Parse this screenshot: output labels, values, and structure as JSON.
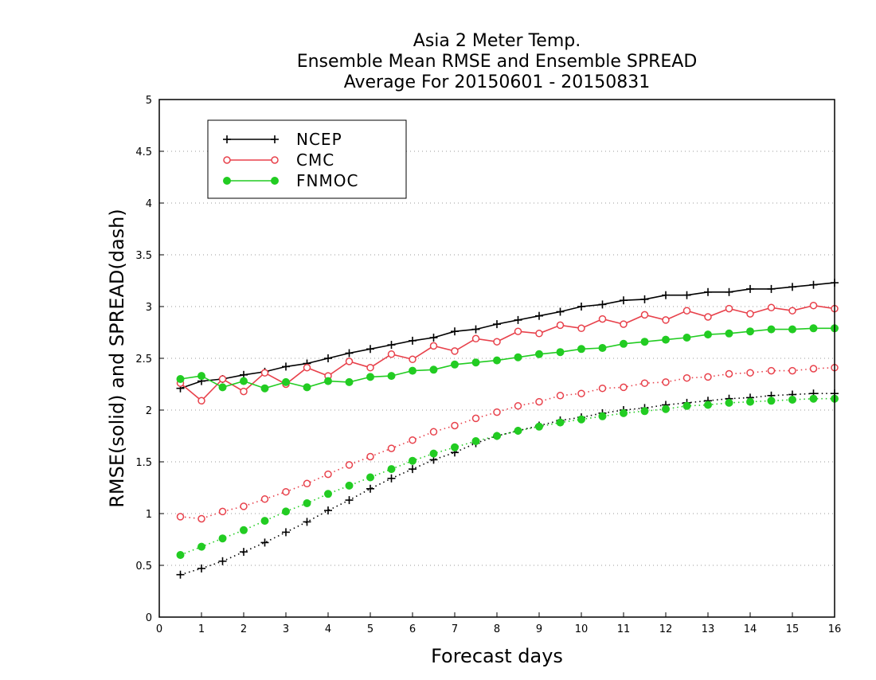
{
  "chart_data": {
    "type": "line",
    "title": [
      "Asia 2 Meter Temp.",
      "Ensemble Mean RMSE and Ensemble SPREAD",
      "Average For 20150601 - 20150831"
    ],
    "xlabel": "Forecast days",
    "ylabel": "RMSE(solid) and SPREAD(dash)",
    "xlim": [
      0,
      16
    ],
    "ylim": [
      0,
      5
    ],
    "xticks": [
      "0",
      "1",
      "2",
      "3",
      "4",
      "5",
      "6",
      "7",
      "8",
      "9",
      "10",
      "11",
      "12",
      "13",
      "14",
      "15",
      "16"
    ],
    "yticks": [
      "0",
      "0.5",
      "1",
      "1.5",
      "2",
      "2.5",
      "3",
      "3.5",
      "4",
      "4.5",
      "5"
    ],
    "grid": "horizontal dotted",
    "legend_position": "top-left",
    "legend": [
      "NCEP",
      "CMC",
      "FNMOC"
    ],
    "x": [
      0.5,
      1,
      1.5,
      2,
      2.5,
      3,
      3.5,
      4,
      4.5,
      5,
      5.5,
      6,
      6.5,
      7,
      7.5,
      8,
      8.5,
      9,
      9.5,
      10,
      10.5,
      11,
      11.5,
      12,
      12.5,
      13,
      13.5,
      14,
      14.5,
      15,
      15.5,
      16
    ],
    "series": [
      {
        "name": "NCEP",
        "metric": "RMSE",
        "style": "solid",
        "color": "#000000",
        "marker": "plus",
        "values": [
          2.21,
          2.28,
          2.3,
          2.34,
          2.37,
          2.42,
          2.45,
          2.5,
          2.55,
          2.59,
          2.63,
          2.67,
          2.7,
          2.76,
          2.78,
          2.83,
          2.87,
          2.91,
          2.95,
          3.0,
          3.02,
          3.06,
          3.07,
          3.11,
          3.11,
          3.14,
          3.14,
          3.17,
          3.17,
          3.19,
          3.21,
          3.23
        ]
      },
      {
        "name": "CMC",
        "metric": "RMSE",
        "style": "solid",
        "color": "#e8414b",
        "marker": "open-circle",
        "values": [
          2.26,
          2.09,
          2.3,
          2.18,
          2.36,
          2.25,
          2.41,
          2.33,
          2.47,
          2.41,
          2.54,
          2.49,
          2.62,
          2.57,
          2.69,
          2.66,
          2.76,
          2.74,
          2.82,
          2.79,
          2.88,
          2.83,
          2.92,
          2.87,
          2.96,
          2.9,
          2.98,
          2.93,
          2.99,
          2.96,
          3.01,
          2.98
        ]
      },
      {
        "name": "FNMOC",
        "metric": "RMSE",
        "style": "solid",
        "color": "#22cc22",
        "marker": "filled-circle",
        "values": [
          2.3,
          2.33,
          2.22,
          2.28,
          2.21,
          2.27,
          2.22,
          2.28,
          2.27,
          2.32,
          2.33,
          2.38,
          2.39,
          2.44,
          2.46,
          2.48,
          2.51,
          2.54,
          2.56,
          2.59,
          2.6,
          2.64,
          2.66,
          2.68,
          2.7,
          2.73,
          2.74,
          2.76,
          2.78,
          2.78,
          2.79,
          2.79
        ]
      },
      {
        "name": "NCEP",
        "metric": "SPREAD",
        "style": "dash",
        "color": "#000000",
        "marker": "plus",
        "values": [
          0.41,
          0.47,
          0.54,
          0.63,
          0.72,
          0.82,
          0.92,
          1.03,
          1.13,
          1.24,
          1.34,
          1.43,
          1.52,
          1.59,
          1.68,
          1.75,
          1.8,
          1.85,
          1.9,
          1.93,
          1.97,
          2.0,
          2.02,
          2.05,
          2.07,
          2.09,
          2.11,
          2.12,
          2.14,
          2.15,
          2.16,
          2.16
        ]
      },
      {
        "name": "CMC",
        "metric": "SPREAD",
        "style": "dash",
        "color": "#e8414b",
        "marker": "open-circle",
        "values": [
          0.97,
          0.95,
          1.02,
          1.07,
          1.14,
          1.21,
          1.29,
          1.38,
          1.47,
          1.55,
          1.63,
          1.71,
          1.79,
          1.85,
          1.92,
          1.98,
          2.04,
          2.08,
          2.14,
          2.16,
          2.21,
          2.22,
          2.26,
          2.27,
          2.31,
          2.32,
          2.35,
          2.36,
          2.38,
          2.38,
          2.4,
          2.41
        ]
      },
      {
        "name": "FNMOC",
        "metric": "SPREAD",
        "style": "dash",
        "color": "#22cc22",
        "marker": "filled-circle",
        "values": [
          0.6,
          0.68,
          0.76,
          0.84,
          0.93,
          1.02,
          1.1,
          1.19,
          1.27,
          1.35,
          1.43,
          1.51,
          1.58,
          1.64,
          1.7,
          1.75,
          1.8,
          1.84,
          1.88,
          1.91,
          1.94,
          1.97,
          1.99,
          2.01,
          2.04,
          2.05,
          2.07,
          2.08,
          2.09,
          2.1,
          2.11,
          2.11
        ]
      }
    ]
  }
}
